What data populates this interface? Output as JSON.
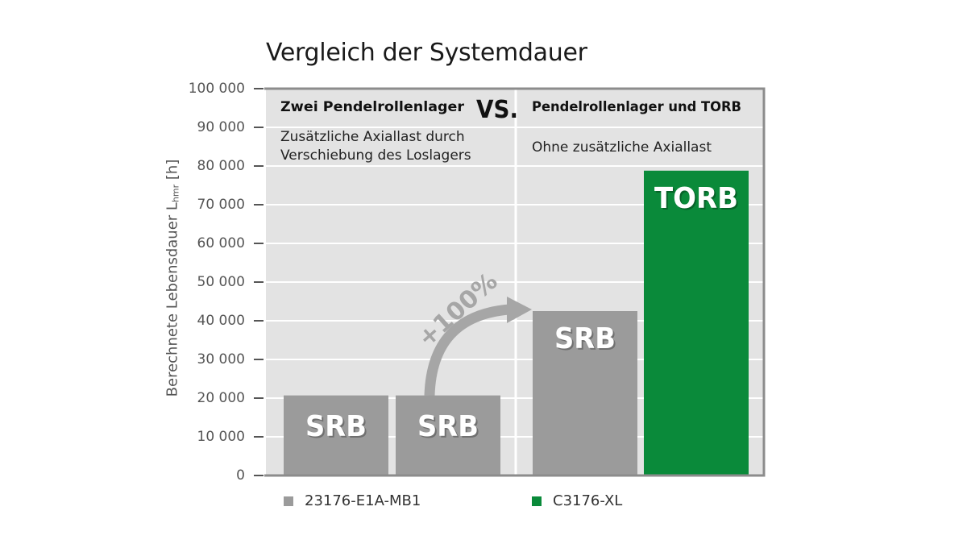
{
  "chart_data": {
    "type": "bar",
    "title": "Vergleich der Systemdauer",
    "ylabel": "Berechnete Lebensdauer L",
    "ylabel_sub": "hmr",
    "ylabel_unit": "[h]",
    "ylim": [
      0,
      100000
    ],
    "yticks": [
      0,
      10000,
      20000,
      30000,
      40000,
      50000,
      60000,
      70000,
      80000,
      90000,
      100000
    ],
    "ytick_labels": [
      "0",
      "10 000",
      "20 000",
      "30 000",
      "40 000",
      "50 000",
      "60 000",
      "70 000",
      "80 000",
      "90 000",
      "100 000"
    ],
    "grid": true,
    "bars": [
      {
        "label": "SRB",
        "value": 20700,
        "series": "23176-E1A-MB1"
      },
      {
        "label": "SRB",
        "value": 20700,
        "series": "23176-E1A-MB1"
      },
      {
        "label": "SRB",
        "value": 42500,
        "series": "23176-E1A-MB1"
      },
      {
        "label": "TORB",
        "value": 78800,
        "series": "C3176-XL"
      }
    ],
    "series": [
      {
        "name": "23176-E1A-MB1",
        "color": "#9b9b9b"
      },
      {
        "name": "C3176-XL",
        "color": "#0a8a3a"
      }
    ],
    "panels": [
      {
        "heading": "Zwei Pendelrollenlager",
        "subtitle_lines": [
          "Zusätzliche Axiallast durch",
          "Verschiebung des Loslagers"
        ]
      },
      {
        "heading": "Pendelrollenlager und TORB",
        "subtitle_lines": [
          "Ohne zusätzliche Axiallast"
        ]
      }
    ],
    "vs_label": "VS.",
    "annotation": "+100%",
    "legend_position": "bottom"
  },
  "colors": {
    "plot_bg": "#e3e3e3",
    "frame": "#8c8c8c",
    "grid": "#ffffff",
    "bar_grey": "#9b9b9b",
    "bar_green": "#0a8a3a",
    "arrow": "#a6a6a6"
  }
}
